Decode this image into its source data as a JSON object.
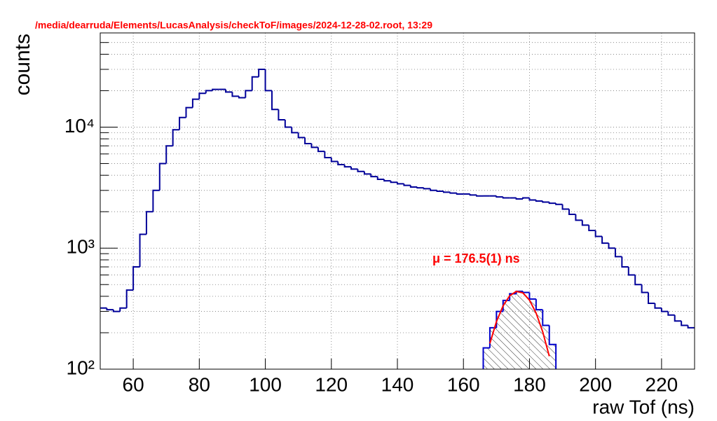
{
  "chart_data": {
    "type": "histogram",
    "title": "/media/dearruda/Elements/LucasAnalysis/checkToF/images/2024-12-28-02.root,  13:29",
    "xlabel": "raw Tof (ns)",
    "ylabel": "counts",
    "annotation": "μ = 176.5(1) ns",
    "log_y": true,
    "grid": true,
    "xlim": [
      50,
      230
    ],
    "ylim": [
      100,
      60000
    ],
    "xticks": [
      60,
      80,
      100,
      120,
      140,
      160,
      180,
      200,
      220
    ],
    "yticks": [
      {
        "value": 100,
        "label": "10²"
      },
      {
        "value": 1000,
        "label": "10³"
      },
      {
        "value": 10000,
        "label": "10⁴"
      }
    ],
    "yminorticks": [
      200,
      300,
      400,
      500,
      600,
      700,
      800,
      900,
      2000,
      3000,
      4000,
      5000,
      6000,
      7000,
      8000,
      9000,
      20000,
      30000,
      40000,
      50000
    ],
    "series": [
      {
        "color": "#000099",
        "bins": [
          50,
          52,
          54,
          56,
          58,
          60,
          62,
          64,
          66,
          68,
          70,
          72,
          74,
          76,
          78,
          80,
          82,
          84,
          86,
          88,
          90,
          92,
          94,
          96,
          98,
          100,
          102,
          104,
          106,
          108,
          110,
          112,
          114,
          116,
          118,
          120,
          122,
          124,
          126,
          128,
          130,
          132,
          134,
          136,
          138,
          140,
          142,
          144,
          146,
          148,
          150,
          152,
          154,
          156,
          158,
          160,
          162,
          164,
          166,
          168,
          170,
          172,
          174,
          176,
          178,
          180,
          182,
          184,
          186,
          188,
          190,
          192,
          194,
          196,
          198,
          200,
          202,
          204,
          206,
          208,
          210,
          212,
          214,
          216,
          218,
          220,
          222,
          224,
          226,
          228,
          230
        ],
        "values": [
          320,
          310,
          300,
          320,
          450,
          700,
          1300,
          2000,
          3000,
          5000,
          7000,
          9500,
          12000,
          14500,
          17000,
          19000,
          20000,
          20500,
          20500,
          19500,
          18000,
          17500,
          20000,
          26000,
          30000,
          20000,
          14000,
          11500,
          10000,
          9000,
          8200,
          7300,
          6800,
          6300,
          5600,
          5200,
          4900,
          4700,
          4500,
          4300,
          4100,
          3900,
          3700,
          3600,
          3500,
          3400,
          3300,
          3200,
          3150,
          3100,
          3000,
          2950,
          2900,
          2850,
          2800,
          2800,
          2750,
          2700,
          2700,
          2700,
          2650,
          2600,
          2600,
          2550,
          2600,
          2500,
          2450,
          2400,
          2350,
          2300,
          2100,
          1900,
          1700,
          1550,
          1400,
          1250,
          1100,
          1000,
          850,
          700,
          600,
          500,
          430,
          350,
          320,
          300,
          280,
          250,
          230,
          220
        ]
      },
      {
        "color": "#0000cc",
        "hatch": true,
        "bins": [
          166,
          168,
          170,
          172,
          174,
          176,
          178,
          180,
          182,
          184,
          186,
          188
        ],
        "values": [
          150,
          220,
          300,
          370,
          420,
          440,
          430,
          380,
          310,
          230,
          160
        ]
      }
    ],
    "fit": {
      "color": "#ff0000",
      "x": [
        168,
        170,
        172,
        174,
        176,
        178,
        180,
        182,
        184,
        186
      ],
      "values": [
        163,
        247,
        333,
        404,
        439,
        427,
        372,
        291,
        204,
        128
      ]
    }
  }
}
